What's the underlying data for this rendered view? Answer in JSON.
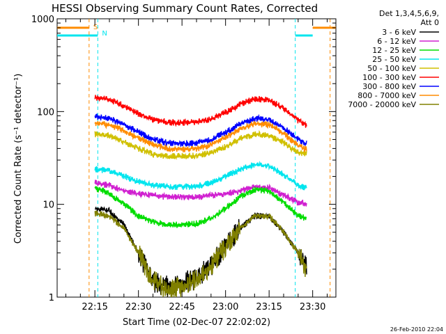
{
  "chart_data": {
    "type": "line",
    "title": "HESSI Observing Summary Count Rates, Corrected",
    "xlabel": "Start Time (02-Dec-07 22:02:02)",
    "ylabel": "Corrected Count Rate (s⁻¹ detector⁻¹)",
    "y_scale": "log",
    "ylim": [
      1,
      1000
    ],
    "y_ticks": [
      {
        "value": 1,
        "label": "1"
      },
      {
        "value": 10,
        "label": "10"
      },
      {
        "value": 100,
        "label": "100"
      },
      {
        "value": 1000,
        "label": "1000"
      }
    ],
    "xlim": [
      "22:02",
      "23:38"
    ],
    "x_ticks": [
      "22:15",
      "22:30",
      "22:45",
      "23:00",
      "23:15",
      "23:30"
    ],
    "grid": false,
    "legend": {
      "placement": "right",
      "header": [
        "Det 1,3,4,5,6,9,",
        "Att 0"
      ]
    },
    "markers": [
      {
        "label": "S",
        "times": [
          "22:13",
          "23:36"
        ],
        "color": "#ff8c00",
        "style": "dashed"
      },
      {
        "label": "N",
        "times": [
          "22:16",
          "23:24"
        ],
        "color": "#00e5ee",
        "style": "dashed"
      }
    ],
    "decimation_bars": [
      {
        "color": "#ff8c00",
        "y": 800,
        "x_ranges": [
          [
            "22:02",
            "22:13"
          ],
          [
            "23:30",
            "23:38"
          ]
        ]
      },
      {
        "color": "#00e5ee",
        "y": 660,
        "x_ranges": [
          [
            "22:02",
            "22:16"
          ],
          [
            "23:24",
            "23:30"
          ]
        ]
      }
    ],
    "x_time_points": [
      "22:15",
      "22:20",
      "22:25",
      "22:30",
      "22:35",
      "22:40",
      "22:45",
      "22:50",
      "22:55",
      "23:00",
      "23:05",
      "23:10",
      "23:15",
      "23:20",
      "23:25",
      "23:28"
    ],
    "series": [
      {
        "name": "3 - 6 keV",
        "color": "#000000",
        "values": [
          9,
          8.5,
          6,
          3,
          1.5,
          1.3,
          1.4,
          1.6,
          2.2,
          3.5,
          5.5,
          7.5,
          7.5,
          5,
          3,
          2
        ]
      },
      {
        "name": "6 - 12 keV",
        "color": "#d020d0",
        "values": [
          17,
          16,
          14,
          13,
          12.5,
          12,
          12,
          12,
          12.5,
          13,
          14,
          15.5,
          15,
          12.5,
          10.5,
          10
        ]
      },
      {
        "name": "12 - 25 keV",
        "color": "#00dd00",
        "values": [
          15,
          13,
          10,
          7.5,
          6.5,
          6,
          6,
          6.2,
          7,
          9,
          12,
          14.5,
          14,
          10.5,
          7.5,
          7
        ]
      },
      {
        "name": "25 - 50 keV",
        "color": "#00e5ee",
        "values": [
          24,
          23,
          20,
          17.5,
          16,
          15.5,
          15.5,
          15.5,
          17,
          20,
          24,
          27,
          26,
          21,
          16,
          15
        ]
      },
      {
        "name": "50 - 100 keV",
        "color": "#d0c000",
        "values": [
          57,
          55,
          47,
          40,
          35,
          33,
          33,
          33.5,
          36,
          42,
          51,
          57,
          55,
          46,
          36,
          35
        ]
      },
      {
        "name": "100 - 300 keV",
        "color": "#ff0000",
        "values": [
          140,
          135,
          115,
          95,
          82,
          77,
          76,
          77,
          83,
          98,
          120,
          137,
          133,
          108,
          80,
          70
        ]
      },
      {
        "name": "300 - 800 keV",
        "color": "#0000ff",
        "values": [
          88,
          85,
          72,
          60,
          50,
          46,
          45,
          46,
          50,
          60,
          73,
          84,
          82,
          67,
          50,
          45
        ]
      },
      {
        "name": "800 - 7000 keV",
        "color": "#ff8c00",
        "values": [
          75,
          72,
          62,
          52,
          44,
          40,
          39,
          40,
          44,
          53,
          65,
          74,
          72,
          58,
          43,
          39
        ]
      },
      {
        "name": "7000 - 20000 keV",
        "color": "#808000",
        "values": [
          8,
          7.5,
          5.5,
          3,
          1.5,
          1.2,
          1.3,
          1.5,
          2.2,
          3.5,
          5.5,
          7.5,
          7.5,
          5,
          3,
          2
        ]
      }
    ]
  },
  "timestamp": "26-Feb-2010 22:04"
}
